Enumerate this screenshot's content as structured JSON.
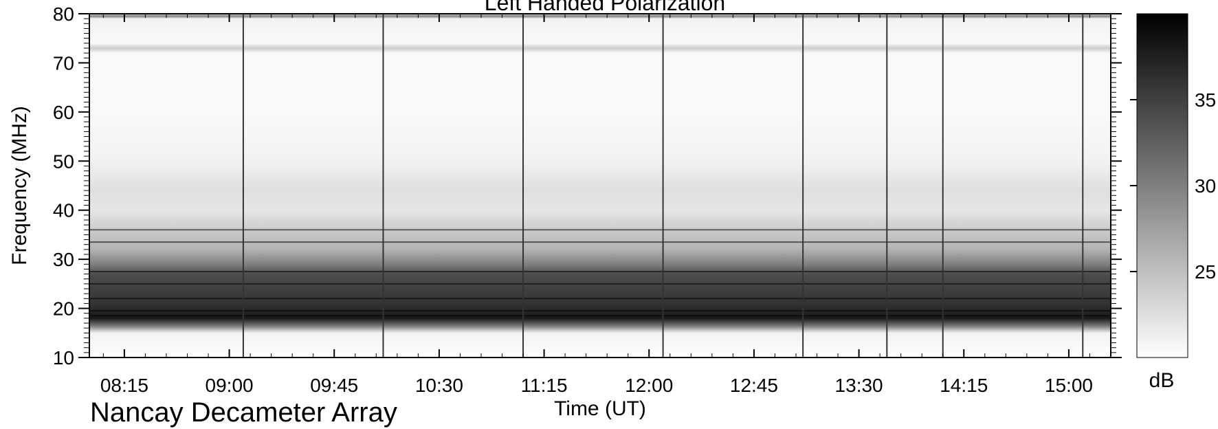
{
  "title": "Left Handed Polarization",
  "instrument": "Nancay Decameter Array",
  "chart_data": {
    "type": "heatmap",
    "title": "Left Handed Polarization",
    "xlabel": "Time (UT)",
    "ylabel": "Frequency (MHz)",
    "colorbar_label": "dB",
    "x_ticks": [
      "08:15",
      "09:00",
      "09:45",
      "10:30",
      "11:15",
      "12:00",
      "12:45",
      "13:30",
      "14:15",
      "15:00"
    ],
    "x_tick_minutes": [
      495,
      540,
      585,
      630,
      675,
      720,
      765,
      810,
      855,
      900
    ],
    "xlim_minutes": [
      480,
      918
    ],
    "y_ticks": [
      10,
      20,
      30,
      40,
      50,
      60,
      70,
      80
    ],
    "ylim": [
      10,
      80
    ],
    "colorbar_ticks": [
      25,
      30,
      35
    ],
    "colorbar_range": [
      20,
      40
    ],
    "colormap": [
      "#ffffff",
      "#000000"
    ],
    "vertical_gap_times": [
      "09:06",
      "10:06",
      "11:06",
      "12:06",
      "13:06",
      "13:42",
      "14:06",
      "15:06"
    ],
    "intensity_profile_by_frequency": [
      {
        "freq": 10,
        "db": 20
      },
      {
        "freq": 15,
        "db": 21
      },
      {
        "freq": 16.5,
        "db": 31
      },
      {
        "freq": 18,
        "db": 38
      },
      {
        "freq": 21,
        "db": 36
      },
      {
        "freq": 24,
        "db": 35
      },
      {
        "freq": 27,
        "db": 34
      },
      {
        "freq": 29,
        "db": 30
      },
      {
        "freq": 32,
        "db": 26
      },
      {
        "freq": 36,
        "db": 24
      },
      {
        "freq": 40,
        "db": 22
      },
      {
        "freq": 44,
        "db": 22.5
      },
      {
        "freq": 50,
        "db": 21
      },
      {
        "freq": 60,
        "db": 20.5
      },
      {
        "freq": 72,
        "db": 20.5
      },
      {
        "freq": 73,
        "db": 24
      },
      {
        "freq": 74,
        "db": 20.5
      },
      {
        "freq": 79,
        "db": 21
      },
      {
        "freq": 79.5,
        "db": 30
      },
      {
        "freq": 80,
        "db": 22
      }
    ],
    "strong_bands_mhz": [
      18.5,
      19.5,
      22,
      25,
      27.5,
      33.5,
      36
    ]
  }
}
